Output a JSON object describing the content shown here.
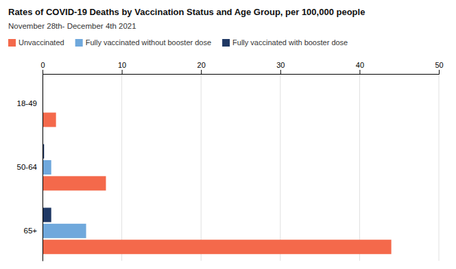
{
  "chart_data": {
    "type": "bar",
    "orientation": "horizontal",
    "title": "Rates of COVID-19 Deaths by Vaccination Status and Age Group, per 100,000 people",
    "subtitle": "November 28th- December 4th 2021",
    "categories": [
      "18-49",
      "50-64",
      "65+"
    ],
    "series": [
      {
        "name": "Unvaccinated",
        "color": "#f4694b",
        "values": [
          1.7,
          8.0,
          44.0
        ]
      },
      {
        "name": "Fully vaccinated without booster dose",
        "color": "#6fa8dc",
        "values": [
          0.0,
          1.1,
          5.5
        ]
      },
      {
        "name": "Fully vaccinated with booster dose",
        "color": "#1f3864",
        "values": [
          0.0,
          0.2,
          1.1
        ]
      }
    ],
    "xlim": [
      0,
      50
    ],
    "xticks": [
      0,
      10,
      20,
      30,
      40,
      50
    ],
    "grid": true,
    "legend": "upper left"
  }
}
